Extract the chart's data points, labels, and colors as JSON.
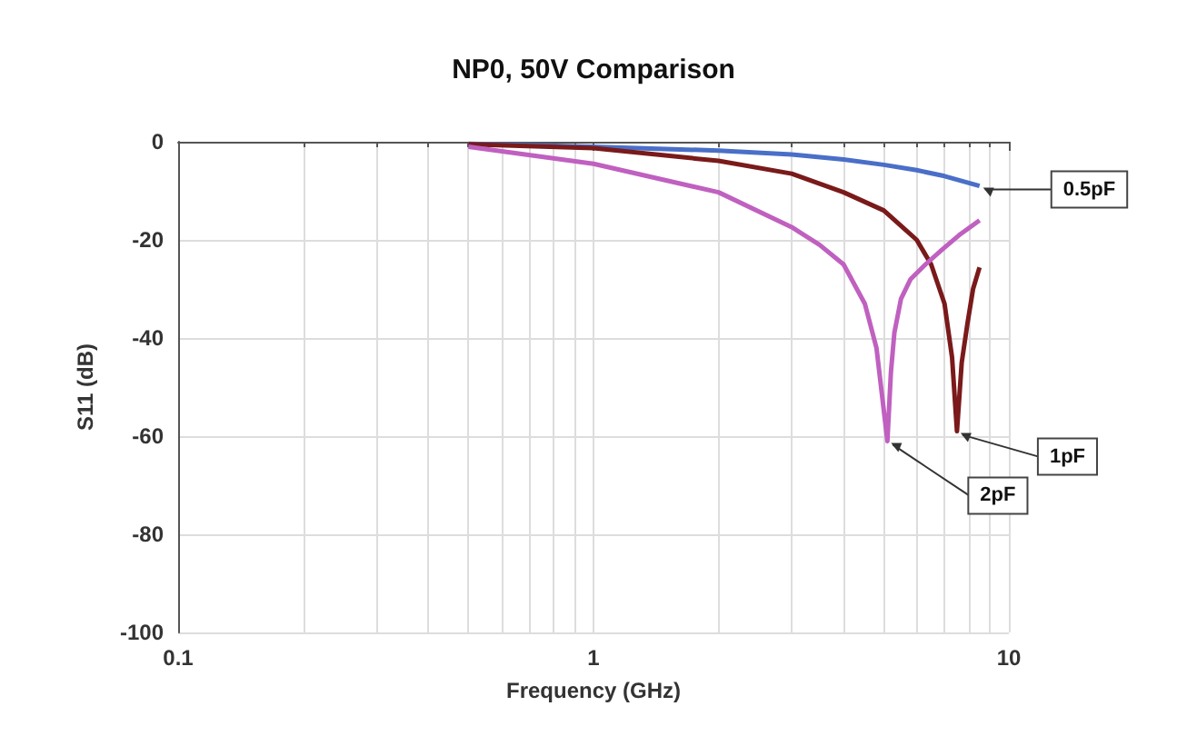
{
  "chart_data": {
    "type": "line",
    "title": "NP0, 50V Comparison",
    "xlabel": "Frequency (GHz)",
    "ylabel": "S11 (dB)",
    "log": "x",
    "xlim": [
      0.1,
      10
    ],
    "xticks": [
      0.1,
      1,
      10
    ],
    "ylim": [
      -100,
      0
    ],
    "yticks": [
      -100,
      -80,
      -60,
      -40,
      -20,
      0
    ],
    "grid": true,
    "marker": "none",
    "line_style": "solid",
    "series": [
      {
        "color": "#4a6fc8",
        "x": [
          0.5,
          1,
          2,
          3,
          4,
          5,
          6,
          7,
          8.5
        ],
        "values": [
          -0.4,
          -1,
          -1.8,
          -2.6,
          -3.6,
          -4.7,
          -5.8,
          -7,
          -9
        ]
      },
      {
        "color": "#7a1a1a",
        "x": [
          0.5,
          1,
          2,
          3,
          4,
          5,
          6,
          6.5,
          7,
          7.3,
          7.5,
          7.7,
          7.95,
          8.2,
          8.5
        ],
        "values": [
          -0.5,
          -1.3,
          -3.9,
          -6.5,
          -10.3,
          -14,
          -20,
          -25,
          -33,
          -44,
          -59,
          -45,
          -37,
          -30,
          -25.6
        ]
      },
      {
        "color": "#c060c0",
        "x": [
          0.5,
          1,
          2,
          3,
          3.5,
          4,
          4.5,
          4.8,
          5.1,
          5.2,
          5.3,
          5.5,
          5.8,
          6.3,
          6.9,
          7.6,
          8.5
        ],
        "values": [
          -1,
          -4.5,
          -10.3,
          -17.4,
          -21,
          -25,
          -33,
          -42,
          -61,
          -47,
          -39,
          -32,
          -28,
          -25,
          -22,
          -19,
          -16
        ]
      }
    ],
    "annotations": [
      {
        "text": "0.5pF",
        "x": 8.5,
        "y": -9
      },
      {
        "text": "1pF",
        "x": 7.5,
        "y": -59
      },
      {
        "text": "2pF",
        "x": 5.1,
        "y": -61
      }
    ]
  }
}
